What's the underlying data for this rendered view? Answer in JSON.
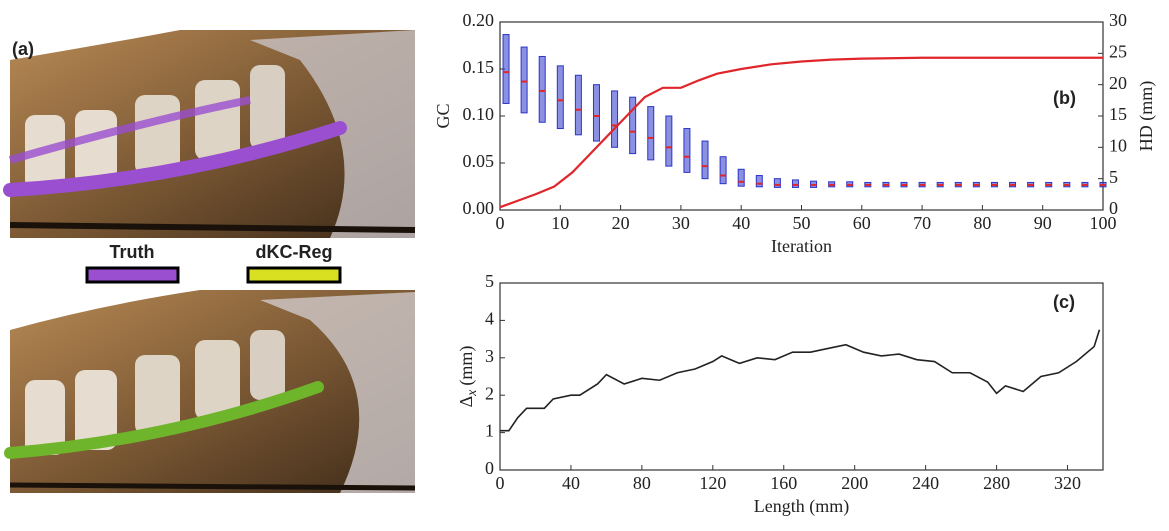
{
  "panel_a": {
    "label": "(a)",
    "legend": [
      {
        "name": "Truth",
        "color": "#9a4fd0"
      },
      {
        "name": "dKC-Reg",
        "color": "#d9e021"
      }
    ]
  },
  "chart_data": [
    {
      "type": "combo",
      "label": "(b)",
      "xlabel": "Iteration",
      "ylabel": "GC",
      "y2label": "HD (mm)",
      "xlim": [
        0,
        100
      ],
      "xticks": [
        0,
        10,
        20,
        30,
        40,
        50,
        60,
        70,
        80,
        90,
        100
      ],
      "ylim": [
        0,
        0.2
      ],
      "yticks": [
        {
          "value": 0,
          "label": "0.00"
        },
        {
          "value": 0.05,
          "label": "0.05"
        },
        {
          "value": 0.1,
          "label": "0.10"
        },
        {
          "value": 0.15,
          "label": "0.15"
        },
        {
          "value": 0.2,
          "label": "0.20"
        }
      ],
      "y2lim": [
        0,
        30
      ],
      "y2ticks": [
        0,
        5,
        10,
        15,
        20,
        25,
        30
      ],
      "line": {
        "color": "#e0262b",
        "x": [
          0,
          3,
          6,
          9,
          12,
          15,
          18,
          21,
          24,
          27,
          30,
          33,
          36,
          40,
          45,
          50,
          55,
          60,
          70,
          80,
          90,
          100
        ],
        "values": [
          0.003,
          0.01,
          0.017,
          0.025,
          0.04,
          0.06,
          0.08,
          0.1,
          0.12,
          0.13,
          0.13,
          0.138,
          0.145,
          0.15,
          0.155,
          0.158,
          0.16,
          0.161,
          0.162,
          0.162,
          0.162,
          0.162
        ]
      },
      "boxes": {
        "axis": "y2",
        "color": "#2b35c8",
        "median_color": "#e0262b",
        "x": [
          1,
          4,
          7,
          10,
          13,
          16,
          19,
          22,
          25,
          28,
          31,
          34,
          37,
          40,
          43,
          46,
          49,
          52,
          55,
          58,
          61,
          64,
          67,
          70,
          73,
          76,
          79,
          82,
          85,
          88,
          91,
          94,
          97,
          100
        ],
        "q1": [
          17,
          15.5,
          14,
          13,
          12,
          11,
          10,
          9,
          8,
          7,
          6,
          5,
          4.2,
          3.8,
          3.7,
          3.6,
          3.6,
          3.6,
          3.7,
          3.7,
          3.7,
          3.7,
          3.7,
          3.7,
          3.7,
          3.7,
          3.7,
          3.7,
          3.7,
          3.7,
          3.7,
          3.7,
          3.7,
          3.7
        ],
        "median": [
          22,
          20.5,
          19,
          17.5,
          16,
          15,
          13.5,
          12.5,
          11.5,
          10,
          8.5,
          7,
          5.5,
          4.5,
          4.2,
          4,
          4,
          4,
          4,
          4,
          4,
          4,
          4,
          4,
          4,
          4,
          4,
          4,
          4,
          4,
          4,
          4,
          4,
          4
        ],
        "q3": [
          28,
          26,
          24.5,
          23,
          21.5,
          20,
          19,
          18,
          16.5,
          15,
          13,
          11,
          8.5,
          6.5,
          5.5,
          5,
          4.8,
          4.6,
          4.5,
          4.5,
          4.4,
          4.4,
          4.4,
          4.4,
          4.4,
          4.4,
          4.4,
          4.4,
          4.4,
          4.4,
          4.4,
          4.4,
          4.4,
          4.4
        ]
      }
    },
    {
      "type": "line",
      "label": "(c)",
      "xlabel": "Length (mm)",
      "ylabel": {
        "symbol": "Δ",
        "subscript": "x",
        "unit": "(mm)"
      },
      "xlim": [
        0,
        340
      ],
      "xticks": [
        0,
        40,
        80,
        120,
        160,
        200,
        240,
        280,
        320
      ],
      "ylim": [
        0,
        5
      ],
      "yticks": [
        0,
        1,
        2,
        3,
        4,
        5
      ],
      "color": "#222222",
      "x": [
        0,
        5,
        10,
        15,
        25,
        30,
        40,
        45,
        55,
        60,
        70,
        80,
        90,
        100,
        110,
        120,
        125,
        135,
        145,
        155,
        165,
        175,
        185,
        195,
        205,
        215,
        225,
        235,
        245,
        255,
        265,
        275,
        280,
        285,
        295,
        305,
        315,
        325,
        335,
        338
      ],
      "values": [
        1.05,
        1.05,
        1.4,
        1.65,
        1.65,
        1.9,
        2.0,
        2.0,
        2.3,
        2.55,
        2.3,
        2.45,
        2.4,
        2.6,
        2.7,
        2.9,
        3.05,
        2.85,
        3.0,
        2.95,
        3.15,
        3.15,
        3.25,
        3.35,
        3.15,
        3.05,
        3.1,
        2.95,
        2.9,
        2.6,
        2.6,
        2.35,
        2.05,
        2.25,
        2.1,
        2.5,
        2.6,
        2.9,
        3.3,
        3.75
      ]
    }
  ]
}
